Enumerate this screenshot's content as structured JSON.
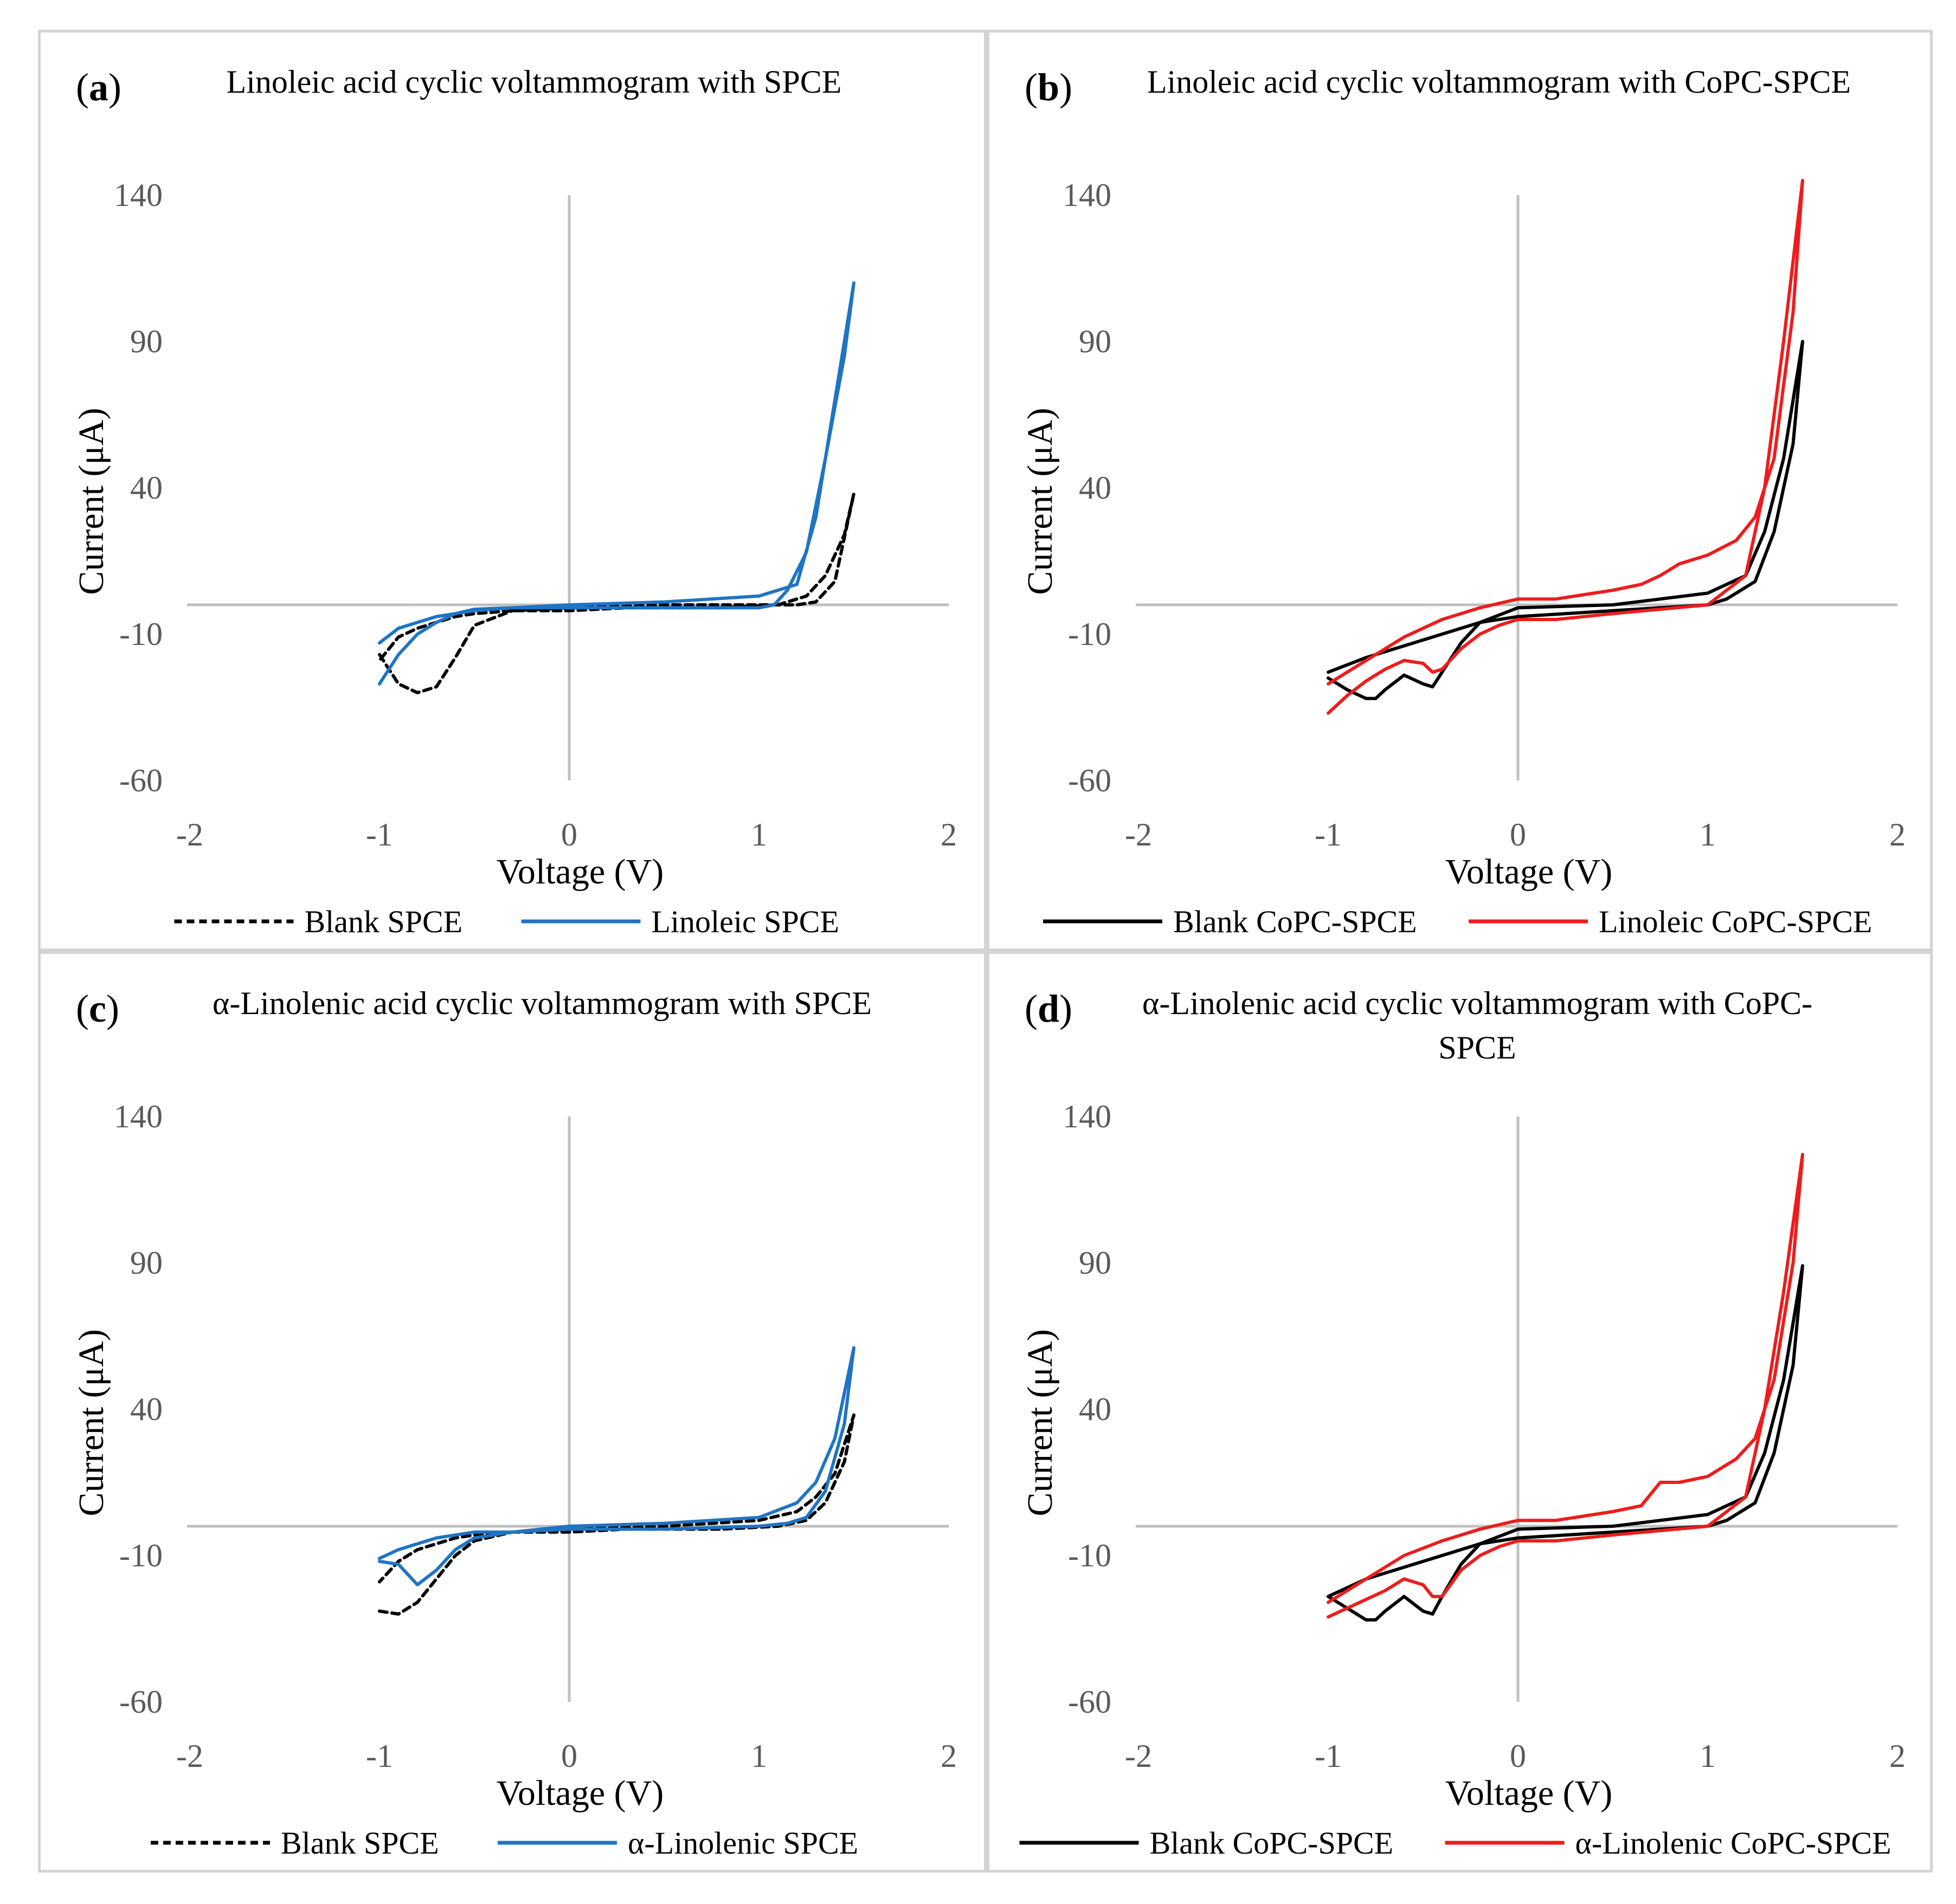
{
  "chart_data": [
    {
      "type": "line",
      "panel_label": "a",
      "title": "Linoleic acid cyclic voltammogram with SPCE",
      "xlabel": "Voltage (V)",
      "ylabel": "Current (μA)",
      "xlim": [
        -2,
        2
      ],
      "ylim": [
        -60,
        140
      ],
      "xticks": [
        "-2",
        "-1",
        "0",
        "1",
        "2"
      ],
      "yticks": [
        "140",
        "90",
        "40",
        "-10",
        "-60"
      ],
      "legend": "bottom",
      "series": [
        {
          "name": "Blank SPCE",
          "color": "#000000",
          "dash": true,
          "x": [
            -1.0,
            -0.9,
            -0.8,
            -0.7,
            -0.6,
            -0.5,
            -0.3,
            0.0,
            0.5,
            1.0,
            1.2,
            1.3,
            1.4,
            1.5,
            1.45,
            1.35,
            1.25,
            1.1,
            0.8,
            0.3,
            0.0,
            -0.3,
            -0.5,
            -0.6,
            -0.7,
            -0.8,
            -0.9,
            -1.0
          ],
          "y": [
            -17,
            -27,
            -30,
            -28,
            -18,
            -7,
            -2,
            -1,
            0,
            0,
            0,
            1,
            8,
            38,
            24,
            10,
            3,
            0,
            -1,
            -1,
            -2,
            -2,
            -3,
            -4,
            -6,
            -8,
            -11,
            -19
          ]
        },
        {
          "name": "Linoleic SPCE",
          "color": "#1f74c4",
          "dash": false,
          "x": [
            -1.0,
            -0.9,
            -0.8,
            -0.7,
            -0.6,
            -0.5,
            -0.3,
            0.0,
            0.5,
            1.0,
            1.2,
            1.3,
            1.4,
            1.5,
            1.45,
            1.35,
            1.25,
            1.15,
            1.08,
            1.0,
            0.5,
            0.0,
            -0.3,
            -0.5,
            -0.6,
            -0.7,
            -0.8,
            -0.9,
            -1.0
          ],
          "y": [
            -27,
            -17,
            -10,
            -6,
            -3,
            -1.5,
            -1,
            0,
            1,
            3,
            7,
            30,
            70,
            110,
            85,
            50,
            18,
            5,
            0,
            -1,
            -1,
            -1,
            -1,
            -2,
            -3,
            -4,
            -6,
            -8,
            -13
          ]
        }
      ]
    },
    {
      "type": "line",
      "panel_label": "b",
      "title": "Linoleic acid cyclic voltammogram with CoPC-SPCE",
      "xlabel": "Voltage (V)",
      "ylabel": "Current (μA)",
      "xlim": [
        -2,
        2
      ],
      "ylim": [
        -60,
        140
      ],
      "xticks": [
        "-2",
        "-1",
        "0",
        "1",
        "2"
      ],
      "yticks": [
        "140",
        "90",
        "40",
        "-10",
        "-60"
      ],
      "legend": "bottom",
      "series": [
        {
          "name": "Blank CoPC-SPCE",
          "color": "#000000",
          "dash": false,
          "x": [
            -1.0,
            -0.9,
            -0.8,
            -0.75,
            -0.7,
            -0.6,
            -0.5,
            -0.45,
            -0.4,
            -0.3,
            -0.2,
            0.0,
            0.5,
            1.0,
            1.2,
            1.3,
            1.4,
            1.5,
            1.45,
            1.35,
            1.25,
            1.1,
            1.0,
            0.5,
            0.0,
            -0.2,
            -0.4,
            -0.6,
            -0.8,
            -1.0
          ],
          "y": [
            -25,
            -29,
            -32,
            -32,
            -29,
            -24,
            -27,
            -28,
            -23,
            -13,
            -6,
            -1,
            0,
            4,
            10,
            25,
            50,
            90,
            55,
            25,
            8,
            2,
            0,
            -2,
            -4,
            -6,
            -10,
            -14,
            -18,
            -23
          ]
        },
        {
          "name": "Linoleic CoPC-SPCE",
          "color": "#ee1c1c",
          "dash": false,
          "x": [
            -1.0,
            -0.9,
            -0.8,
            -0.7,
            -0.6,
            -0.5,
            -0.45,
            -0.4,
            -0.3,
            -0.2,
            -0.1,
            0.0,
            0.2,
            0.5,
            1.0,
            1.2,
            1.3,
            1.4,
            1.5,
            1.45,
            1.35,
            1.25,
            1.15,
            1.0,
            0.85,
            0.75,
            0.65,
            0.5,
            0.2,
            0.0,
            -0.2,
            -0.4,
            -0.6,
            -0.8,
            -1.0
          ],
          "y": [
            -37,
            -31,
            -26,
            -22,
            -19,
            -20,
            -23,
            -22,
            -15,
            -10,
            -7,
            -5,
            -5,
            -3,
            0,
            10,
            40,
            90,
            145,
            100,
            50,
            30,
            22,
            17,
            14,
            10,
            7,
            5,
            2,
            2,
            -1,
            -5,
            -11,
            -19,
            -27
          ]
        }
      ]
    },
    {
      "type": "line",
      "panel_label": "c",
      "title": "α-Linolenic acid cyclic voltammogram with SPCE",
      "xlabel": "Voltage (V)",
      "ylabel": "Current (μA)",
      "xlim": [
        -2,
        2
      ],
      "ylim": [
        -60,
        140
      ],
      "xticks": [
        "-2",
        "-1",
        "0",
        "1",
        "2"
      ],
      "yticks": [
        "140",
        "90",
        "40",
        "-10",
        "-60"
      ],
      "legend": "bottom",
      "series": [
        {
          "name": "Blank SPCE",
          "color": "#000000",
          "dash": true,
          "x": [
            -1.0,
            -0.9,
            -0.8,
            -0.7,
            -0.6,
            -0.5,
            -0.3,
            0.0,
            0.5,
            1.0,
            1.2,
            1.3,
            1.4,
            1.5,
            1.45,
            1.35,
            1.25,
            1.1,
            0.8,
            0.3,
            0.0,
            -0.3,
            -0.5,
            -0.6,
            -0.7,
            -0.8,
            -0.9,
            -1.0
          ],
          "y": [
            -29,
            -30,
            -26,
            -18,
            -10,
            -5,
            -2,
            -1,
            0,
            2,
            5,
            10,
            18,
            38,
            22,
            8,
            2,
            0,
            -1,
            -1,
            -2,
            -2,
            -3,
            -4,
            -6,
            -8,
            -12,
            -19
          ]
        },
        {
          "name": "α-Linolenic SPCE",
          "color": "#1f74c4",
          "dash": false,
          "x": [
            -1.0,
            -0.9,
            -0.8,
            -0.7,
            -0.6,
            -0.5,
            -0.3,
            0.0,
            0.5,
            1.0,
            1.2,
            1.3,
            1.4,
            1.5,
            1.45,
            1.35,
            1.25,
            1.15,
            1.0,
            0.5,
            0.0,
            -0.3,
            -0.5,
            -0.6,
            -0.7,
            -0.8,
            -0.9,
            -1.0
          ],
          "y": [
            -12,
            -13,
            -20,
            -15,
            -8,
            -4,
            -2,
            0,
            1,
            3,
            8,
            15,
            30,
            61,
            35,
            12,
            3,
            1,
            0,
            -1,
            -1,
            -2,
            -2,
            -3,
            -4,
            -6,
            -8,
            -11
          ]
        }
      ]
    },
    {
      "type": "line",
      "panel_label": "d",
      "title": "α-Linolenic acid cyclic voltammogram with CoPC-SPCE",
      "xlabel": "Voltage (V)",
      "ylabel": "Current (μA)",
      "xlim": [
        -2,
        2
      ],
      "ylim": [
        -60,
        140
      ],
      "xticks": [
        "-2",
        "-1",
        "0",
        "1",
        "2"
      ],
      "yticks": [
        "140",
        "90",
        "40",
        "-10",
        "-60"
      ],
      "legend": "bottom",
      "series": [
        {
          "name": "Blank CoPC-SPCE",
          "color": "#000000",
          "dash": false,
          "x": [
            -1.0,
            -0.9,
            -0.8,
            -0.75,
            -0.7,
            -0.6,
            -0.5,
            -0.45,
            -0.4,
            -0.3,
            -0.2,
            0.0,
            0.5,
            1.0,
            1.2,
            1.3,
            1.4,
            1.5,
            1.45,
            1.35,
            1.25,
            1.1,
            1.0,
            0.5,
            0.0,
            -0.2,
            -0.4,
            -0.6,
            -0.8,
            -1.0
          ],
          "y": [
            -24,
            -28,
            -32,
            -32,
            -29,
            -24,
            -29,
            -30,
            -24,
            -13,
            -6,
            -1,
            0,
            4,
            10,
            25,
            50,
            89,
            55,
            25,
            8,
            2,
            0,
            -2,
            -4,
            -6,
            -10,
            -14,
            -18,
            -24
          ]
        },
        {
          "name": "α-Linolenic CoPC-SPCE",
          "color": "#ee1c1c",
          "dash": false,
          "x": [
            -1.0,
            -0.9,
            -0.8,
            -0.7,
            -0.6,
            -0.5,
            -0.45,
            -0.4,
            -0.3,
            -0.2,
            -0.1,
            0.0,
            0.2,
            0.5,
            1.0,
            1.2,
            1.3,
            1.4,
            1.5,
            1.45,
            1.35,
            1.25,
            1.15,
            1.0,
            0.85,
            0.75,
            0.65,
            0.5,
            0.2,
            0.0,
            -0.2,
            -0.4,
            -0.6,
            -0.8,
            -1.0
          ],
          "y": [
            -31,
            -28,
            -25,
            -22,
            -18,
            -20,
            -24,
            -24,
            -15,
            -10,
            -7,
            -5,
            -5,
            -3,
            0,
            10,
            40,
            80,
            127,
            90,
            50,
            30,
            23,
            17,
            15,
            15,
            7,
            5,
            2,
            2,
            -1,
            -5,
            -10,
            -18,
            -26
          ]
        }
      ]
    }
  ]
}
